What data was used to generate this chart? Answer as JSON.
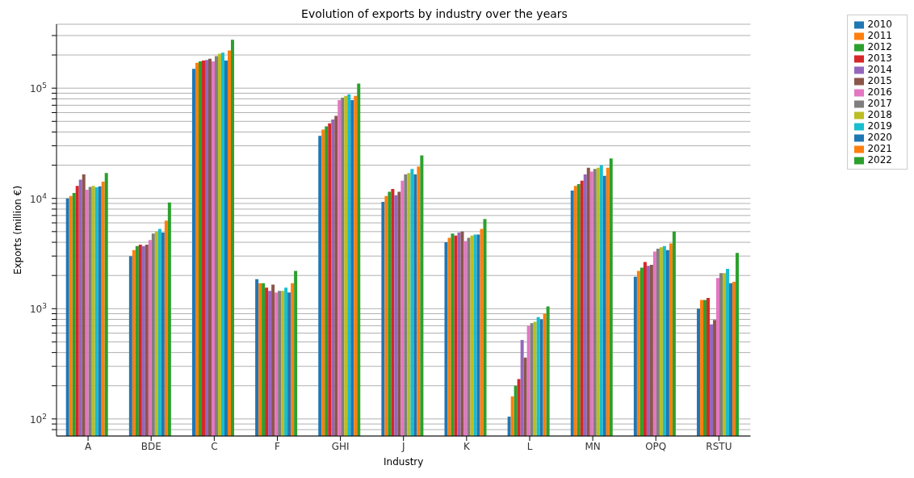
{
  "chart_data": {
    "type": "bar",
    "title": "Evolution of exports by industry over the years",
    "xlabel": "Industry",
    "ylabel": "Exports (million €)",
    "categories": [
      "A",
      "BDE",
      "C",
      "F",
      "GHI",
      "J",
      "K",
      "L",
      "MN",
      "OPQ",
      "RSTU"
    ],
    "log": "y",
    "grid": "y",
    "legend": "top right",
    "ylim": [
      70,
      380000
    ],
    "yticks": [
      {
        "value": 80,
        "label": null
      },
      {
        "value": 90,
        "label": null
      },
      {
        "value": 100,
        "label": "10$^{2}$"
      },
      {
        "value": 200,
        "label": null
      },
      {
        "value": 300,
        "label": null
      },
      {
        "value": 400,
        "label": null
      },
      {
        "value": 500,
        "label": null
      },
      {
        "value": 600,
        "label": null
      },
      {
        "value": 700,
        "label": null
      },
      {
        "value": 800,
        "label": null
      },
      {
        "value": 900,
        "label": null
      },
      {
        "value": 1000,
        "label": "10$^{3}$"
      },
      {
        "value": 2000,
        "label": null
      },
      {
        "value": 3000,
        "label": null
      },
      {
        "value": 4000,
        "label": null
      },
      {
        "value": 5000,
        "label": null
      },
      {
        "value": 6000,
        "label": null
      },
      {
        "value": 7000,
        "label": null
      },
      {
        "value": 8000,
        "label": null
      },
      {
        "value": 9000,
        "label": null
      },
      {
        "value": 10000,
        "label": "10$^{4}$"
      },
      {
        "value": 20000,
        "label": null
      },
      {
        "value": 30000,
        "label": null
      },
      {
        "value": 40000,
        "label": null
      },
      {
        "value": 50000,
        "label": null
      },
      {
        "value": 60000,
        "label": null
      },
      {
        "value": 70000,
        "label": null
      },
      {
        "value": 80000,
        "label": null
      },
      {
        "value": 90000,
        "label": null
      },
      {
        "value": 100000,
        "label": "10$^{5}$"
      },
      {
        "value": 200000,
        "label": null
      },
      {
        "value": 300000,
        "label": null
      }
    ],
    "series": [
      {
        "name": "2010",
        "color": "#1f77b4",
        "values": [
          10000,
          3000,
          150000,
          1850,
          37000,
          9300,
          4000,
          105,
          11800,
          1950,
          1000
        ]
      },
      {
        "name": "2011",
        "color": "#ff7f0e",
        "values": [
          10500,
          3400,
          170000,
          1700,
          42000,
          10500,
          4400,
          160,
          13000,
          2200,
          1200
        ]
      },
      {
        "name": "2012",
        "color": "#2ca02c",
        "values": [
          11200,
          3700,
          175000,
          1700,
          45000,
          11500,
          4800,
          200,
          13500,
          2350,
          1200
        ]
      },
      {
        "name": "2013",
        "color": "#d62728",
        "values": [
          13000,
          3800,
          178000,
          1550,
          48000,
          12200,
          4600,
          230,
          14500,
          2650,
          1250
        ]
      },
      {
        "name": "2014",
        "color": "#9467bd",
        "values": [
          14800,
          3700,
          180000,
          1450,
          52000,
          10700,
          4900,
          520,
          16500,
          2450,
          720
        ]
      },
      {
        "name": "2015",
        "color": "#8c564b",
        "values": [
          16500,
          3800,
          185000,
          1650,
          56000,
          11500,
          5000,
          360,
          19000,
          2500,
          790
        ]
      },
      {
        "name": "2016",
        "color": "#e377c2",
        "values": [
          12000,
          4200,
          175000,
          1400,
          78000,
          14500,
          4100,
          700,
          17500,
          3300,
          1900
        ]
      },
      {
        "name": "2017",
        "color": "#7f7f7f",
        "values": [
          12700,
          4800,
          195000,
          1450,
          82000,
          16500,
          4400,
          740,
          18500,
          3500,
          2100
        ]
      },
      {
        "name": "2018",
        "color": "#bcbd22",
        "values": [
          13000,
          5000,
          205000,
          1450,
          85000,
          17000,
          4600,
          760,
          19000,
          3600,
          2100
        ]
      },
      {
        "name": "2019",
        "color": "#17becf",
        "values": [
          12600,
          5300,
          210000,
          1550,
          88000,
          18500,
          4700,
          840,
          20000,
          3700,
          2300
        ]
      },
      {
        "name": "2020",
        "color": "#1f77b4",
        "values": [
          12900,
          4900,
          178000,
          1400,
          78000,
          16500,
          4700,
          800,
          16000,
          3400,
          1700
        ]
      },
      {
        "name": "2021",
        "color": "#ff7f0e",
        "values": [
          14200,
          6300,
          220000,
          1700,
          85000,
          19500,
          5300,
          900,
          19000,
          3900,
          1750
        ]
      },
      {
        "name": "2022",
        "color": "#2ca02c",
        "values": [
          17000,
          9200,
          275000,
          2200,
          110000,
          24500,
          6500,
          1050,
          23000,
          5000,
          3200
        ]
      }
    ]
  }
}
